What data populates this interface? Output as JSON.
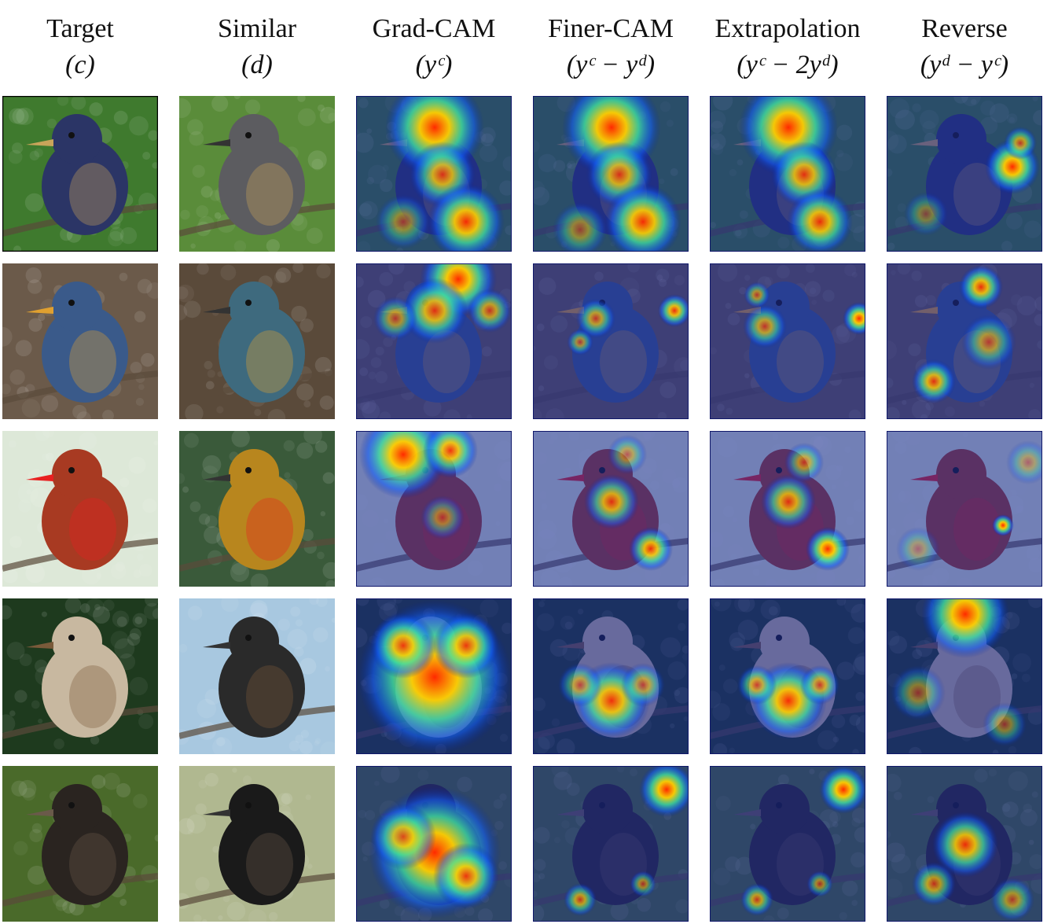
{
  "columns": [
    {
      "title": "Target",
      "formula": "(c)"
    },
    {
      "title": "Similar",
      "formula": "(d)"
    },
    {
      "title": "Grad-CAM",
      "formula": "(yᶜ)"
    },
    {
      "title": "Finer-CAM",
      "formula": "(yᶜ − yᵈ)"
    },
    {
      "title": "Extrapolation",
      "formula": "(yᶜ − 2yᵈ)"
    },
    {
      "title": "Reverse",
      "formula": "(yᵈ − yᶜ)"
    }
  ],
  "rows": [
    {
      "bg": "#3f7a2e",
      "bird": "#2b3566",
      "accent": "#c9a45a",
      "sim_bg": "#5a8c3a",
      "sim_bird": "#5c5c60"
    },
    {
      "bg": "#6b5a4a",
      "bird": "#3a5a8a",
      "accent": "#e0a030",
      "sim_bg": "#5a4a3a",
      "sim_bird": "#3e6a7e"
    },
    {
      "bg": "#dde8d8",
      "bird": "#a83a22",
      "accent": "#e82020",
      "sim_bg": "#3a5a3a",
      "sim_bird": "#b8861e"
    },
    {
      "bg": "#1e3a1e",
      "bird": "#c8b8a0",
      "accent": "#7a5a3a",
      "sim_bg": "#a8c8e0",
      "sim_bird": "#2a2a2a"
    },
    {
      "bg": "#4a6a2a",
      "bird": "#2a2420",
      "accent": "#6a5a4a",
      "sim_bg": "#b0b890",
      "sim_bird": "#1a1a1a"
    }
  ]
}
